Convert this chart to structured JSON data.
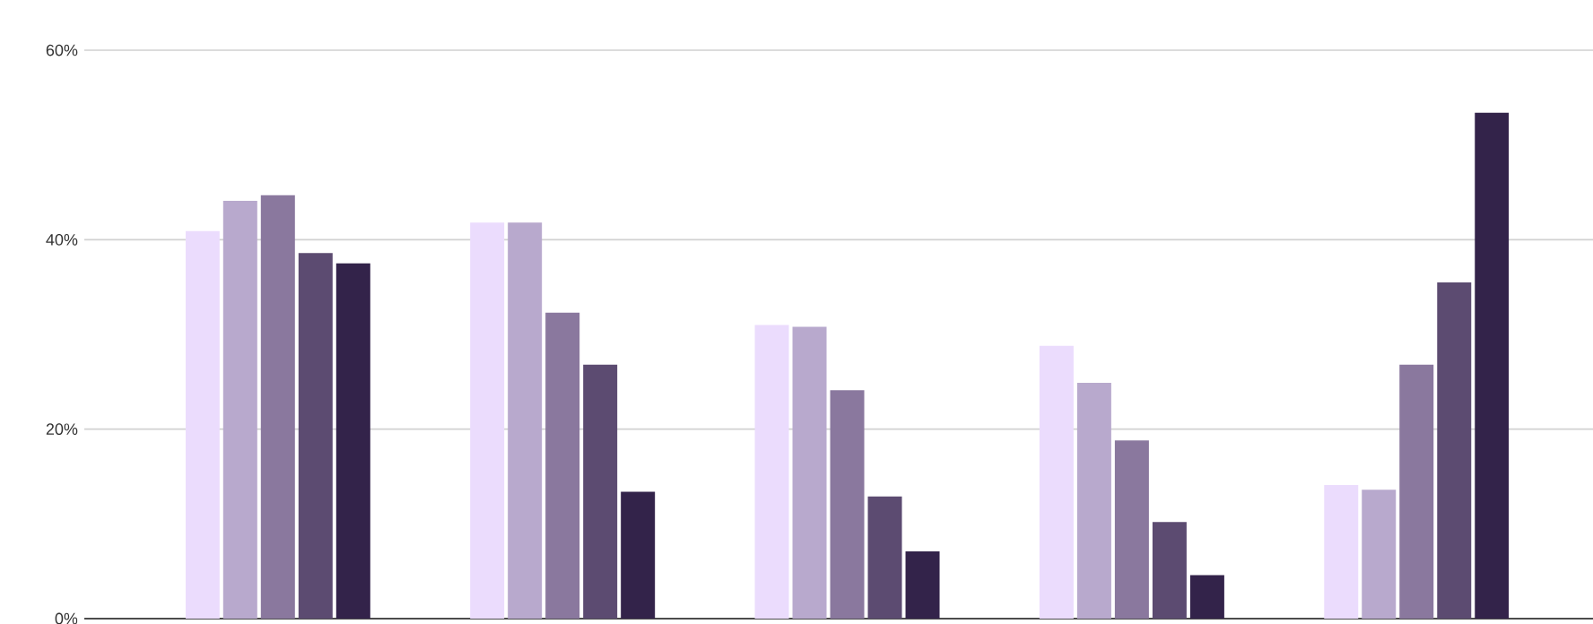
{
  "chart_data": {
    "type": "bar",
    "categories": [
      null,
      null,
      null,
      null,
      null
    ],
    "series": [
      {
        "color": "#ebdcfd",
        "values": [
          40.9,
          41.8,
          31.0,
          28.8,
          14.1
        ]
      },
      {
        "color": "#b8a9cd",
        "values": [
          44.1,
          41.8,
          30.8,
          24.9,
          13.6
        ]
      },
      {
        "color": "#8a789e",
        "values": [
          44.7,
          32.3,
          24.1,
          18.8,
          26.8
        ]
      },
      {
        "color": "#5c4b71",
        "values": [
          38.6,
          26.8,
          12.9,
          10.2,
          35.5
        ]
      },
      {
        "color": "#33234a",
        "values": [
          37.5,
          13.4,
          7.1,
          4.6,
          53.4
        ]
      }
    ],
    "ylim": [
      0,
      60
    ],
    "yticks": [
      {
        "value": 0,
        "label": "0%"
      },
      {
        "value": 20,
        "label": "20%"
      },
      {
        "value": 40,
        "label": "40%"
      },
      {
        "value": 60,
        "label": "60%"
      }
    ],
    "grid": "y"
  }
}
